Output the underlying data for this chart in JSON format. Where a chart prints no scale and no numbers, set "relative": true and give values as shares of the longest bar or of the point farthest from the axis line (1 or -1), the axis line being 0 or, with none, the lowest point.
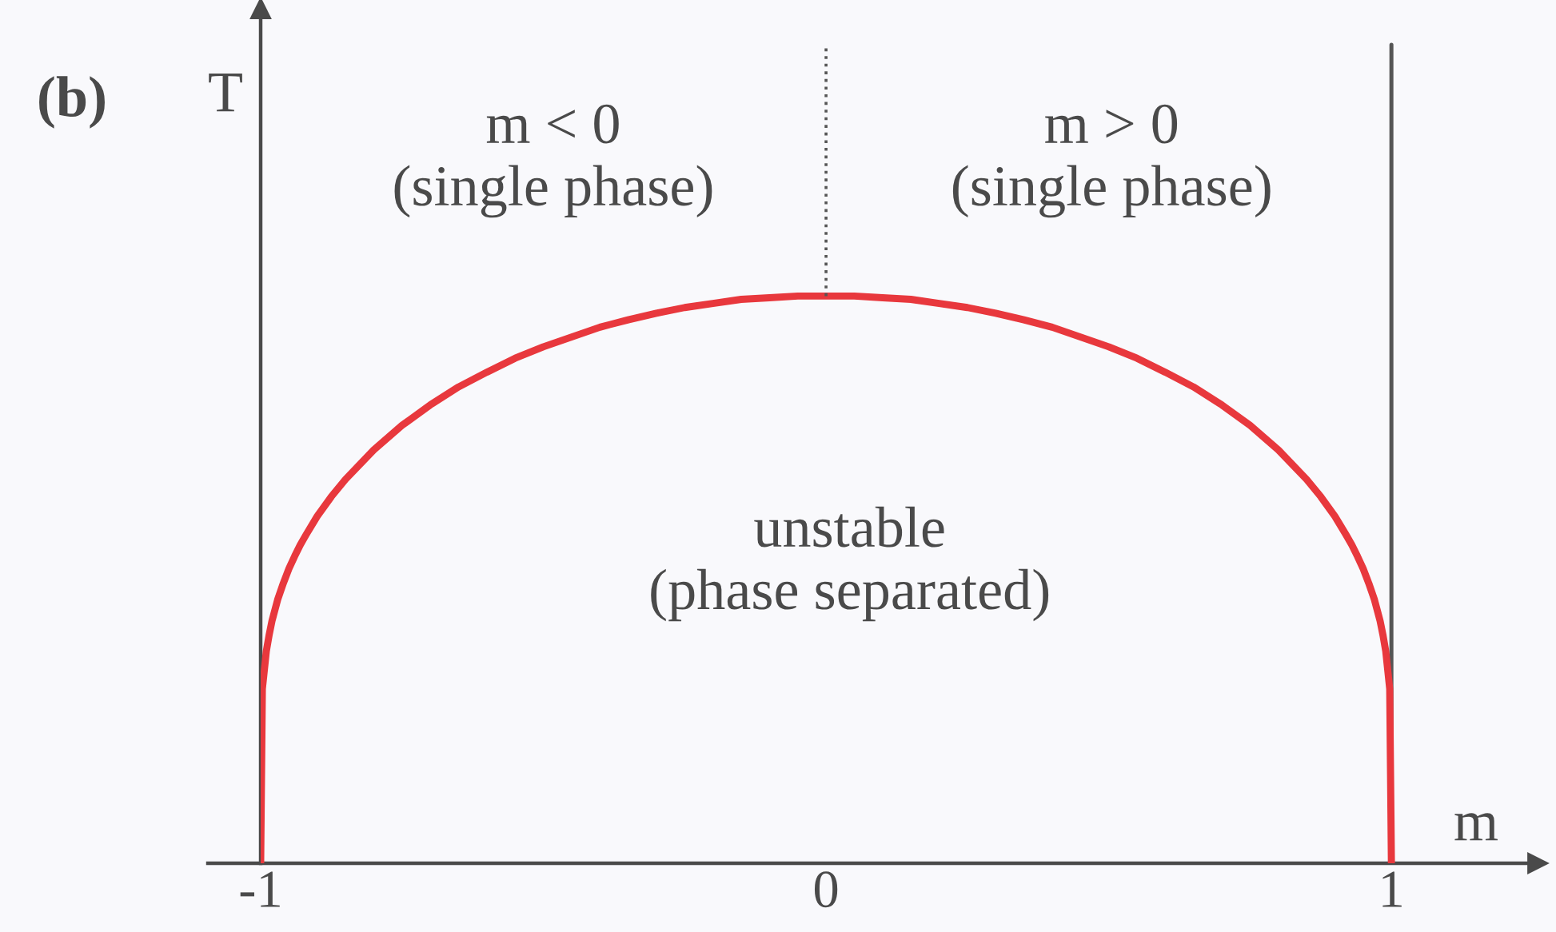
{
  "chart_data": {
    "type": "line",
    "title": "(b)",
    "xlabel": "m",
    "ylabel": "T",
    "relative": true,
    "x": [
      -1,
      -0.997,
      -0.99,
      -0.985,
      -0.98,
      -0.97,
      -0.96,
      -0.95,
      -0.94,
      -0.93,
      -0.92,
      -0.9,
      -0.875,
      -0.85,
      -0.8,
      -0.75,
      -0.7,
      -0.65,
      -0.6,
      -0.55,
      -0.5,
      -0.45,
      -0.4,
      -0.35,
      -0.3,
      -0.25,
      -0.2,
      -0.15,
      -0.1,
      -0.05,
      0,
      0.05,
      0.1,
      0.15,
      0.2,
      0.25,
      0.3,
      0.35,
      0.4,
      0.45,
      0.5,
      0.55,
      0.6,
      0.65,
      0.7,
      0.75,
      0.8,
      0.85,
      0.875,
      0.9,
      0.92,
      0.93,
      0.94,
      0.95,
      0.96,
      0.97,
      0.98,
      0.985,
      0.99,
      0.997,
      1
    ],
    "series": [
      {
        "color": "#e8383d",
        "values": [
          0,
          0.213,
          0.259,
          0.279,
          0.296,
          0.322,
          0.342,
          0.36,
          0.375,
          0.389,
          0.401,
          0.424,
          0.448,
          0.469,
          0.505,
          0.535,
          0.56,
          0.582,
          0.6,
          0.617,
          0.631,
          0.643,
          0.655,
          0.664,
          0.672,
          0.679,
          0.684,
          0.689,
          0.691,
          0.693,
          0.693,
          0.693,
          0.691,
          0.689,
          0.684,
          0.679,
          0.672,
          0.664,
          0.655,
          0.643,
          0.631,
          0.617,
          0.6,
          0.582,
          0.56,
          0.535,
          0.505,
          0.469,
          0.448,
          0.424,
          0.401,
          0.389,
          0.375,
          0.36,
          0.342,
          0.322,
          0.296,
          0.279,
          0.259,
          0.213,
          0
        ]
      },
      {
        "type": "line",
        "color": "#555555",
        "line_style": "dotted",
        "x": [
          0,
          0
        ],
        "values": [
          0.693,
          1
        ]
      }
    ],
    "xlim": [
      -1,
      1.26
    ],
    "xticks": [
      -1,
      0,
      1
    ],
    "ref_lines": [
      {
        "axis": "x",
        "value": 1,
        "line_style": "solid",
        "color": "#555555"
      }
    ],
    "annotations": [
      "m < 0\n(single phase)",
      "m > 0\n(single phase)",
      "unstable\n(phase separated)"
    ]
  }
}
